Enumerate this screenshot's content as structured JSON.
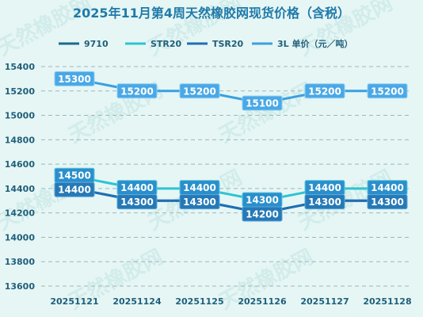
{
  "chart_data": {
    "type": "line",
    "title": "2025年11月第4周天然橡胶网现货价格（含税）",
    "categories": [
      "20251121",
      "20251124",
      "20251125",
      "20251126",
      "20251127",
      "20251128"
    ],
    "ylim": [
      13600,
      15400
    ],
    "yticks": [
      13600,
      13800,
      14000,
      14200,
      14400,
      14600,
      14800,
      15000,
      15200,
      15400
    ],
    "grid": true,
    "legend_position": "top",
    "series": [
      {
        "name": "9710",
        "color": "#1b6a8c",
        "values": [
          14400,
          14300,
          14300,
          14200,
          14300,
          14300
        ]
      },
      {
        "name": "STR20",
        "color": "#2ec4d0",
        "values": [
          14500,
          14400,
          14400,
          14300,
          14400,
          14400
        ]
      },
      {
        "name": "TSR20",
        "color": "#1e6fb5",
        "values": [
          14400,
          14300,
          14300,
          14200,
          14300,
          14300
        ]
      },
      {
        "name": "3L 单价（元／吨）",
        "color": "#3aa0e0",
        "values": [
          15300,
          15200,
          15200,
          15100,
          15200,
          15200
        ]
      }
    ],
    "watermark": "天然橡胶网"
  }
}
